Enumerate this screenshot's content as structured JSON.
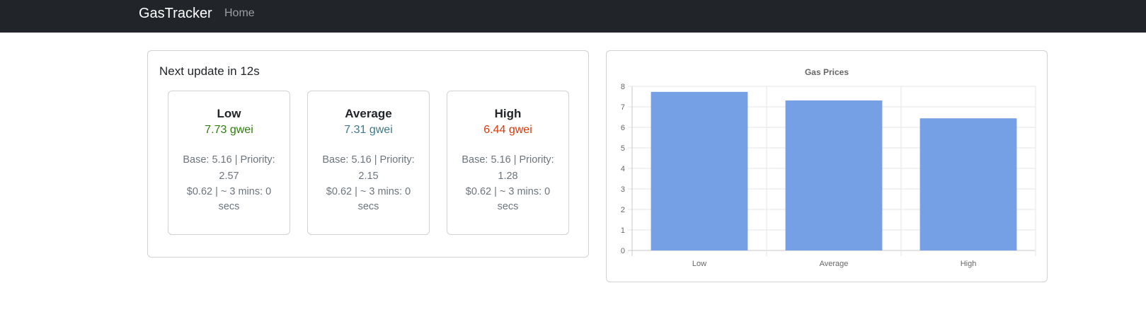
{
  "navbar": {
    "brand": "GasTracker",
    "links": [
      "Home"
    ]
  },
  "status": {
    "next_update": "Next update in 12s"
  },
  "tiers": [
    {
      "name": "Low",
      "price": "7.73 gwei",
      "detail": "Base: 5.16 | Priority: 2.57",
      "cost": "$0.62 | ~ 3 mins: 0 secs",
      "color": "#2e7d0e"
    },
    {
      "name": "Average",
      "price": "7.31 gwei",
      "detail": "Base: 5.16 | Priority: 2.15",
      "cost": "$0.62 | ~ 3 mins: 0 secs",
      "color": "#3d7a8a"
    },
    {
      "name": "High",
      "price": "6.44 gwei",
      "detail": "Base: 5.16 | Priority: 1.28",
      "cost": "$0.62 | ~ 3 mins: 0 secs",
      "color": "#d83a0e"
    }
  ],
  "chart_data": {
    "type": "bar",
    "title": "Gas Prices",
    "categories": [
      "Low",
      "Average",
      "High"
    ],
    "values": [
      7.73,
      7.31,
      6.44
    ],
    "ylim": [
      0,
      8
    ],
    "yticks": [
      "0",
      "1",
      "2",
      "3",
      "4",
      "5",
      "6",
      "7",
      "8"
    ],
    "xlabel": "",
    "ylabel": "",
    "grid": true,
    "bar_color": "#76a0e6"
  }
}
